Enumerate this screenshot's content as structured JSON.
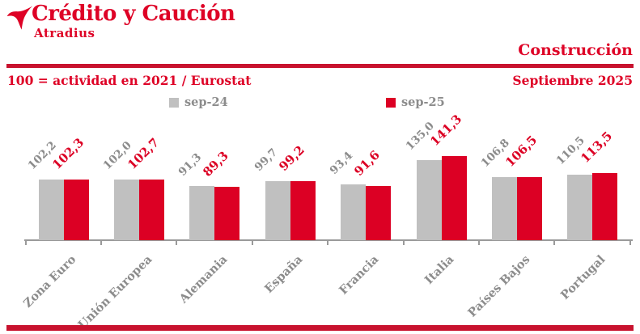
{
  "header": {
    "logo_title": "Crédito y Caución",
    "logo_subtitle": "Atradius",
    "section_title": "Construcción",
    "subtitle_left": "100 = actividad en 2021 / Eurostat",
    "subtitle_right": "Septiembre 2025"
  },
  "colors": {
    "text_red": "#DE0226",
    "line_red": "#C8122E",
    "bar_red": "#DC0024",
    "bar_gray": "#C0C0C0",
    "label_gray": "#8C8C8C",
    "axis_gray": "#9A9A9A"
  },
  "chart_data": {
    "type": "bar",
    "title": "Construcción",
    "subtitle": "Septiembre 2025",
    "value_axis_note": "100 = actividad en 2021 / Eurostat",
    "categories": [
      "Zona Euro",
      "Unión Europea",
      "Alemania",
      "España",
      "Francia",
      "Italia",
      "Países Bajos",
      "Portugal"
    ],
    "series": [
      {
        "name": "sep-24",
        "color_key": "bar_gray",
        "values": [
          102.2,
          102.0,
          91.3,
          99.7,
          93.4,
          135.0,
          106.8,
          110.5
        ],
        "labels": [
          "102,2",
          "102,0",
          "91,3",
          "99,7",
          "93,4",
          "135,0",
          "106,8",
          "110,5"
        ]
      },
      {
        "name": "sep-25",
        "color_key": "bar_red",
        "values": [
          102.3,
          102.7,
          89.3,
          99.2,
          91.6,
          141.3,
          106.5,
          113.5
        ],
        "labels": [
          "102,3",
          "102,7",
          "89,3",
          "99,2",
          "91,6",
          "141,3",
          "106,5",
          "113,5"
        ]
      }
    ],
    "ylim": [
      0,
      200
    ],
    "grid": false,
    "legend_position": "top",
    "data_labels": true,
    "label_rotation_deg": -45
  }
}
